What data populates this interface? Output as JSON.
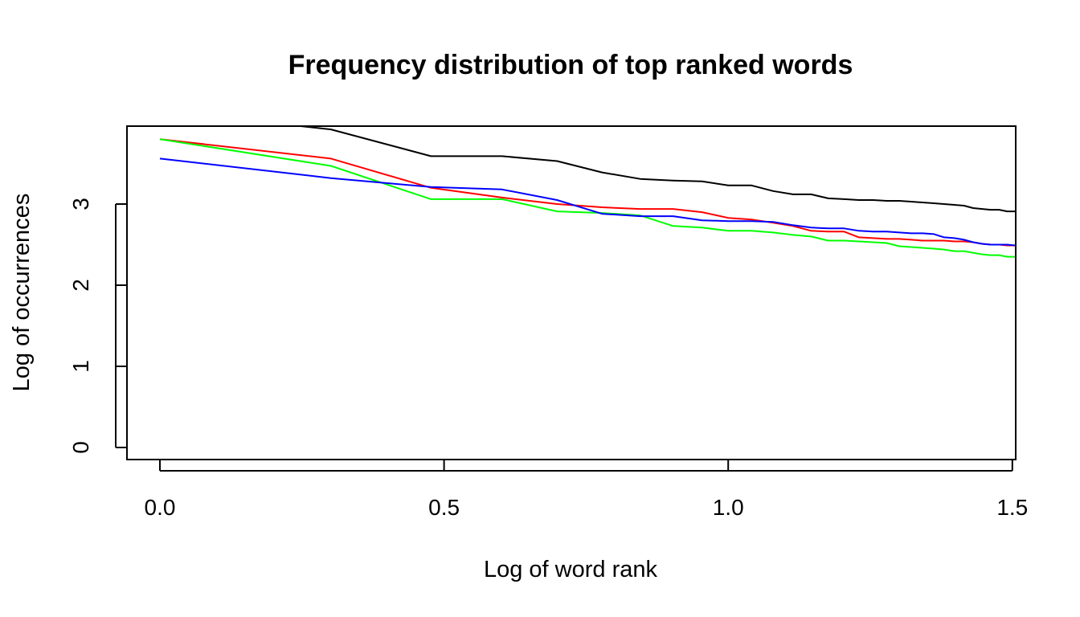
{
  "chart_data": {
    "type": "line",
    "title": "Frequency distribution of top ranked words",
    "xlabel": "Log of word rank",
    "ylabel": "Log of occurrences",
    "xlim": [
      0.0,
      1.5
    ],
    "ylim": [
      0,
      3.8
    ],
    "x_ticks": [
      "0.0",
      "0.5",
      "1.0",
      "1.5"
    ],
    "y_ticks": [
      "0",
      "1",
      "2",
      "3"
    ],
    "grid": false,
    "legend": "none",
    "series": [
      {
        "color": "#000000",
        "points": [
          [
            0.0,
            4.15
          ],
          [
            0.301,
            3.92
          ],
          [
            0.477,
            3.59
          ],
          [
            0.602,
            3.59
          ],
          [
            0.699,
            3.53
          ],
          [
            0.778,
            3.39
          ],
          [
            0.845,
            3.31
          ],
          [
            0.903,
            3.29
          ],
          [
            0.954,
            3.28
          ],
          [
            1.0,
            3.23
          ],
          [
            1.041,
            3.23
          ],
          [
            1.079,
            3.16
          ],
          [
            1.114,
            3.12
          ],
          [
            1.146,
            3.12
          ],
          [
            1.176,
            3.07
          ],
          [
            1.204,
            3.06
          ],
          [
            1.23,
            3.05
          ],
          [
            1.255,
            3.05
          ],
          [
            1.279,
            3.04
          ],
          [
            1.301,
            3.04
          ],
          [
            1.322,
            3.03
          ],
          [
            1.342,
            3.02
          ],
          [
            1.362,
            3.01
          ],
          [
            1.38,
            3.0
          ],
          [
            1.398,
            2.99
          ],
          [
            1.415,
            2.98
          ],
          [
            1.431,
            2.95
          ],
          [
            1.447,
            2.94
          ],
          [
            1.462,
            2.93
          ],
          [
            1.477,
            2.93
          ],
          [
            1.491,
            2.91
          ],
          [
            1.505,
            2.91
          ]
        ]
      },
      {
        "color": "#ff0000",
        "points": [
          [
            0.0,
            3.8
          ],
          [
            0.301,
            3.56
          ],
          [
            0.477,
            3.2
          ],
          [
            0.602,
            3.08
          ],
          [
            0.699,
            3.0
          ],
          [
            0.778,
            2.96
          ],
          [
            0.845,
            2.94
          ],
          [
            0.903,
            2.94
          ],
          [
            0.954,
            2.9
          ],
          [
            1.0,
            2.83
          ],
          [
            1.041,
            2.81
          ],
          [
            1.079,
            2.77
          ],
          [
            1.114,
            2.73
          ],
          [
            1.146,
            2.67
          ],
          [
            1.176,
            2.66
          ],
          [
            1.204,
            2.66
          ],
          [
            1.23,
            2.59
          ],
          [
            1.255,
            2.58
          ],
          [
            1.279,
            2.57
          ],
          [
            1.301,
            2.57
          ],
          [
            1.322,
            2.56
          ],
          [
            1.342,
            2.55
          ],
          [
            1.362,
            2.55
          ],
          [
            1.38,
            2.55
          ],
          [
            1.398,
            2.54
          ],
          [
            1.415,
            2.54
          ],
          [
            1.431,
            2.53
          ],
          [
            1.447,
            2.51
          ],
          [
            1.462,
            2.5
          ],
          [
            1.477,
            2.5
          ],
          [
            1.491,
            2.49
          ],
          [
            1.505,
            2.49
          ]
        ]
      },
      {
        "color": "#00ff00",
        "points": [
          [
            0.0,
            3.8
          ],
          [
            0.301,
            3.47
          ],
          [
            0.477,
            3.06
          ],
          [
            0.602,
            3.06
          ],
          [
            0.699,
            2.91
          ],
          [
            0.778,
            2.89
          ],
          [
            0.845,
            2.86
          ],
          [
            0.903,
            2.73
          ],
          [
            0.954,
            2.71
          ],
          [
            1.0,
            2.67
          ],
          [
            1.041,
            2.67
          ],
          [
            1.079,
            2.65
          ],
          [
            1.114,
            2.62
          ],
          [
            1.146,
            2.6
          ],
          [
            1.176,
            2.55
          ],
          [
            1.204,
            2.55
          ],
          [
            1.23,
            2.54
          ],
          [
            1.255,
            2.53
          ],
          [
            1.279,
            2.52
          ],
          [
            1.301,
            2.48
          ],
          [
            1.322,
            2.47
          ],
          [
            1.342,
            2.46
          ],
          [
            1.362,
            2.45
          ],
          [
            1.38,
            2.44
          ],
          [
            1.398,
            2.42
          ],
          [
            1.415,
            2.42
          ],
          [
            1.431,
            2.4
          ],
          [
            1.447,
            2.38
          ],
          [
            1.462,
            2.37
          ],
          [
            1.477,
            2.37
          ],
          [
            1.491,
            2.35
          ],
          [
            1.505,
            2.35
          ]
        ]
      },
      {
        "color": "#0000ff",
        "points": [
          [
            0.0,
            3.56
          ],
          [
            0.301,
            3.32
          ],
          [
            0.477,
            3.21
          ],
          [
            0.602,
            3.18
          ],
          [
            0.699,
            3.05
          ],
          [
            0.778,
            2.88
          ],
          [
            0.845,
            2.85
          ],
          [
            0.903,
            2.85
          ],
          [
            0.954,
            2.8
          ],
          [
            1.0,
            2.79
          ],
          [
            1.041,
            2.79
          ],
          [
            1.079,
            2.78
          ],
          [
            1.114,
            2.74
          ],
          [
            1.146,
            2.71
          ],
          [
            1.176,
            2.7
          ],
          [
            1.204,
            2.7
          ],
          [
            1.23,
            2.67
          ],
          [
            1.255,
            2.66
          ],
          [
            1.279,
            2.66
          ],
          [
            1.301,
            2.65
          ],
          [
            1.322,
            2.64
          ],
          [
            1.342,
            2.64
          ],
          [
            1.362,
            2.63
          ],
          [
            1.38,
            2.59
          ],
          [
            1.398,
            2.58
          ],
          [
            1.415,
            2.56
          ],
          [
            1.431,
            2.53
          ],
          [
            1.447,
            2.51
          ],
          [
            1.462,
            2.5
          ],
          [
            1.477,
            2.5
          ],
          [
            1.491,
            2.5
          ],
          [
            1.505,
            2.49
          ]
        ]
      }
    ]
  }
}
